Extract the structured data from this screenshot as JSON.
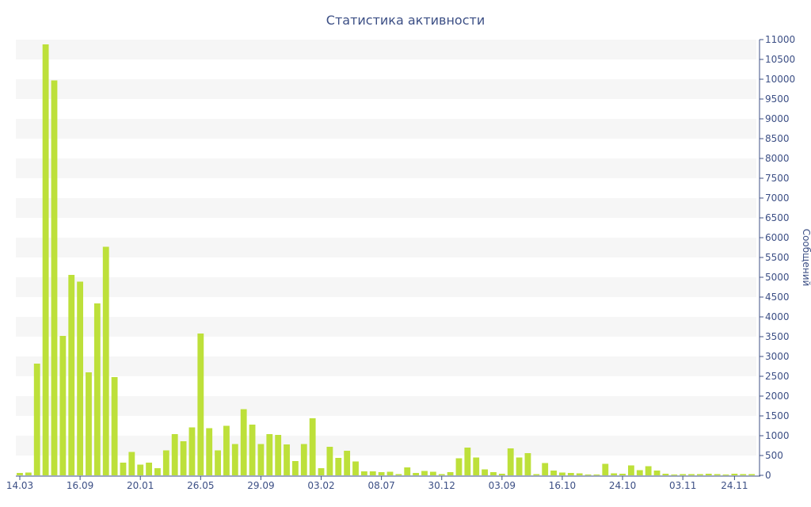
{
  "chart_data": {
    "type": "bar",
    "title": "Статистика активности",
    "ylabel": "Сообщений",
    "xlabel": "",
    "ylim": [
      0,
      11000
    ],
    "y_ticks": [
      0,
      500,
      1000,
      1500,
      2000,
      2500,
      3000,
      3500,
      4000,
      4500,
      5000,
      5500,
      6000,
      6500,
      7000,
      7500,
      8000,
      8500,
      9000,
      9500,
      10000,
      10500,
      11000
    ],
    "x_tick_labels": [
      {
        "label": "14.03",
        "index": 0
      },
      {
        "label": "16.09",
        "index": 7
      },
      {
        "label": "20.01",
        "index": 14
      },
      {
        "label": "26.05",
        "index": 21
      },
      {
        "label": "29.09",
        "index": 28
      },
      {
        "label": "03.02",
        "index": 35
      },
      {
        "label": "08.07",
        "index": 42
      },
      {
        "label": "30.12",
        "index": 49
      },
      {
        "label": "03.09",
        "index": 56
      },
      {
        "label": "16.10",
        "index": 63
      },
      {
        "label": "24.10",
        "index": 70
      },
      {
        "label": "03.11",
        "index": 77
      },
      {
        "label": "24.11",
        "index": 83
      }
    ],
    "grid": "horizontal bands",
    "axis_position": "right",
    "bar_color": "#bde03a",
    "values": [
      60,
      70,
      2820,
      10880,
      9970,
      3520,
      5060,
      4890,
      2600,
      4340,
      5770,
      2480,
      320,
      590,
      270,
      320,
      180,
      630,
      1040,
      860,
      1210,
      3580,
      1190,
      630,
      1250,
      790,
      1670,
      1280,
      790,
      1040,
      1020,
      780,
      360,
      790,
      1440,
      180,
      720,
      440,
      620,
      350,
      100,
      100,
      80,
      90,
      30,
      200,
      60,
      110,
      90,
      30,
      80,
      430,
      700,
      450,
      150,
      80,
      40,
      680,
      450,
      560,
      30,
      310,
      120,
      70,
      60,
      50,
      20,
      20,
      290,
      50,
      40,
      250,
      130,
      230,
      120,
      40,
      20,
      30,
      30,
      30,
      40,
      30,
      20,
      40,
      30,
      30
    ]
  }
}
